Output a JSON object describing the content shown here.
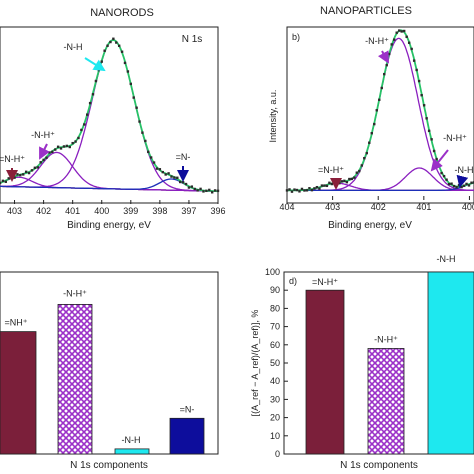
{
  "colors": {
    "experimental": "#2b2b2b",
    "fit": "#27c267",
    "component": "#8a1fbf",
    "baseline": "#7a1a33",
    "nh_plus_bar": "#7b1f3a",
    "nh_plus_hatch": "#9b30c8",
    "nh_bar": "#1ee8ef",
    "n_minus_bar": "#0d0d9c"
  },
  "headings": {
    "left": "NANORODS",
    "right": "NANOPARTICLES"
  },
  "chart_data": [
    {
      "id": "a",
      "type": "line",
      "panel_label": "",
      "title": "N 1s",
      "xlabel": "Binding energy, eV",
      "ylabel": "",
      "xlim": [
        403.5,
        396
      ],
      "xticks": [
        403,
        402,
        401,
        400,
        399,
        398,
        397,
        396
      ],
      "peaks": [
        {
          "label": "-N-H",
          "center": 399.6,
          "amplitude": 0.93,
          "sigma": 0.72
        },
        {
          "label": "-N-H⁺",
          "center": 401.55,
          "amplitude": 0.22,
          "sigma": 0.55
        },
        {
          "label": "=N-H⁺",
          "center": 402.85,
          "amplitude": 0.06,
          "sigma": 0.45
        },
        {
          "label": "=N-",
          "center": 397.6,
          "amplitude": 0.07,
          "sigma": 0.42
        }
      ],
      "annotations": [
        "-N-H",
        "-N-H⁺",
        "=N-H⁺",
        "=N-"
      ]
    },
    {
      "id": "b",
      "type": "line",
      "panel_label": "b)",
      "title": "",
      "xlabel": "Binding energy, eV",
      "ylabel": "Intensity, a.u.",
      "xlim": [
        404,
        399.9
      ],
      "xticks": [
        404,
        403,
        402,
        401,
        400
      ],
      "peaks": [
        {
          "label": "-N-H⁺",
          "center": 401.55,
          "amplitude": 0.95,
          "sigma": 0.42
        },
        {
          "label": "-N-H⁺",
          "center": 401.1,
          "amplitude": 0.14,
          "sigma": 0.3
        },
        {
          "label": "=N-H⁺",
          "center": 402.9,
          "amplitude": 0.045,
          "sigma": 0.3
        },
        {
          "label": "-N-H",
          "center": 399.8,
          "amplitude": 0.05,
          "sigma": 0.28
        }
      ],
      "annotations": [
        "-N-H⁺",
        "-N-H⁺",
        "=N-H⁺",
        "-N-H"
      ]
    },
    {
      "id": "c",
      "type": "bar",
      "panel_label": "",
      "xlabel": "N 1s components",
      "ylabel": "",
      "ylim": [
        0,
        100
      ],
      "categories": [
        "=NH⁺",
        "-N-H⁺",
        "-N-H",
        "=N-"
      ],
      "values": [
        72,
        88,
        3,
        21
      ]
    },
    {
      "id": "d",
      "type": "bar",
      "panel_label": "d)",
      "xlabel": "N 1s components",
      "ylabel": "[(A_ref − A_ref)/(A_ref)], %",
      "ylim": [
        0,
        100
      ],
      "yticks": [
        0,
        10,
        20,
        30,
        40,
        50,
        60,
        70,
        80,
        90,
        100
      ],
      "categories": [
        "=N-H⁺",
        "-N-H⁺",
        "-N-H"
      ],
      "values": [
        90,
        58,
        100
      ]
    }
  ]
}
